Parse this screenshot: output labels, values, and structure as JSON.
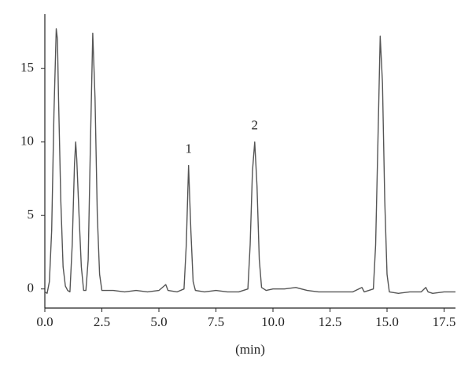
{
  "chart_data": {
    "type": "line",
    "xlabel": "(min)",
    "x": [
      0.0,
      0.1,
      0.2,
      0.3,
      0.4,
      0.5,
      0.55,
      0.6,
      0.7,
      0.8,
      0.9,
      1.0,
      1.1,
      1.2,
      1.3,
      1.35,
      1.4,
      1.5,
      1.6,
      1.7,
      1.8,
      1.9,
      2.0,
      2.1,
      2.2,
      2.3,
      2.4,
      2.5,
      3.0,
      3.5,
      4.0,
      4.5,
      5.0,
      5.3,
      5.4,
      5.8,
      6.1,
      6.2,
      6.3,
      6.4,
      6.5,
      6.6,
      7.0,
      7.5,
      8.0,
      8.5,
      8.9,
      9.0,
      9.1,
      9.2,
      9.3,
      9.4,
      9.5,
      9.7,
      10.0,
      10.5,
      11.0,
      11.5,
      12.0,
      12.5,
      13.0,
      13.5,
      13.9,
      14.0,
      14.4,
      14.5,
      14.6,
      14.7,
      14.8,
      14.9,
      15.0,
      15.1,
      15.5,
      16.0,
      16.5,
      16.7,
      16.8,
      17.0,
      17.5,
      18.0
    ],
    "values": [
      -0.2,
      -0.3,
      0.5,
      4,
      12,
      17.7,
      17,
      13,
      6,
      1.5,
      0.2,
      -0.1,
      -0.2,
      3,
      8.5,
      10,
      8.8,
      5,
      1.5,
      -0.1,
      -0.1,
      2,
      10,
      17.4,
      13,
      5,
      1.0,
      -0.1,
      -0.1,
      -0.2,
      -0.1,
      -0.2,
      -0.1,
      0.3,
      -0.1,
      -0.2,
      0.0,
      3,
      8.4,
      4,
      0.5,
      -0.1,
      -0.2,
      -0.1,
      -0.2,
      -0.2,
      0.0,
      3,
      8,
      10,
      7,
      2,
      0.1,
      -0.1,
      0.0,
      0.0,
      0.1,
      -0.1,
      -0.2,
      -0.2,
      -0.2,
      -0.2,
      0.1,
      -0.2,
      0.0,
      3,
      10,
      17.2,
      14,
      6,
      1,
      -0.2,
      -0.3,
      -0.2,
      -0.2,
      0.1,
      -0.2,
      -0.3,
      -0.2,
      -0.2
    ],
    "color": "#555555",
    "xlim": [
      0,
      18
    ],
    "xticks": [
      {
        "value": 0,
        "label": "0.0"
      },
      2.5,
      {
        "value": 5,
        "label": "5.0"
      },
      7.5,
      {
        "value": 10,
        "label": "10.0"
      },
      12.5,
      {
        "value": 15,
        "label": "15.0"
      },
      17.5
    ],
    "ylim": [
      -1.3,
      18.7
    ],
    "yticks": [
      0,
      5,
      10,
      15
    ],
    "annotations": [
      {
        "text": "1",
        "x": 6.3,
        "y": 8.4
      },
      {
        "text": "2",
        "x": 9.2,
        "y": 10
      }
    ]
  }
}
